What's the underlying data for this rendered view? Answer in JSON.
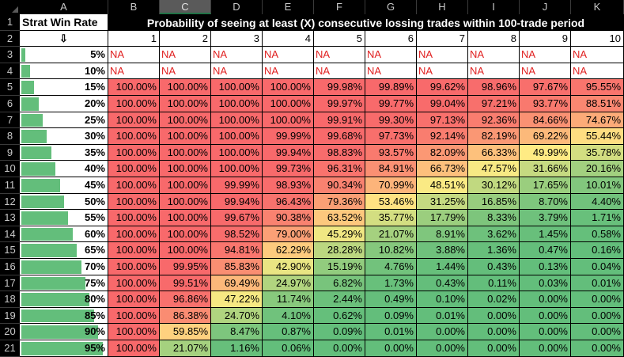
{
  "sheet": {
    "columns": [
      "A",
      "B",
      "C",
      "D",
      "E",
      "F",
      "G",
      "H",
      "I",
      "J",
      "K"
    ],
    "selected_column": "C",
    "rows": [
      "1",
      "2",
      "3",
      "4",
      "5",
      "6",
      "7",
      "8",
      "9",
      "10",
      "11",
      "12",
      "13",
      "14",
      "15",
      "16",
      "17",
      "18",
      "19",
      "20",
      "21"
    ]
  },
  "header": {
    "a1": "Strat Win Rate",
    "title": "Probability of seeing at least (X) consecutive lossing trades within 100-trade period",
    "a2": "⇩",
    "streaks": [
      "1",
      "2",
      "3",
      "4",
      "5",
      "6",
      "7",
      "8",
      "9",
      "10"
    ]
  },
  "table": [
    {
      "rate": "5%",
      "fill": 0.05,
      "values": [
        "NA",
        "NA",
        "NA",
        "NA",
        "NA",
        "NA",
        "NA",
        "NA",
        "NA",
        "NA"
      ]
    },
    {
      "rate": "10%",
      "fill": 0.1,
      "values": [
        "NA",
        "NA",
        "NA",
        "NA",
        "NA",
        "NA",
        "NA",
        "NA",
        "NA",
        "NA"
      ]
    },
    {
      "rate": "15%",
      "fill": 0.15,
      "values": [
        "100.00%",
        "100.00%",
        "100.00%",
        "100.00%",
        "99.98%",
        "99.89%",
        "99.62%",
        "98.96%",
        "97.67%",
        "95.55%"
      ]
    },
    {
      "rate": "20%",
      "fill": 0.2,
      "values": [
        "100.00%",
        "100.00%",
        "100.00%",
        "100.00%",
        "99.97%",
        "99.77%",
        "99.04%",
        "97.21%",
        "93.77%",
        "88.51%"
      ]
    },
    {
      "rate": "25%",
      "fill": 0.25,
      "values": [
        "100.00%",
        "100.00%",
        "100.00%",
        "100.00%",
        "99.91%",
        "99.30%",
        "97.13%",
        "92.36%",
        "84.66%",
        "74.67%"
      ]
    },
    {
      "rate": "30%",
      "fill": 0.3,
      "values": [
        "100.00%",
        "100.00%",
        "100.00%",
        "99.99%",
        "99.68%",
        "97.73%",
        "92.14%",
        "82.19%",
        "69.22%",
        "55.44%"
      ]
    },
    {
      "rate": "35%",
      "fill": 0.35,
      "values": [
        "100.00%",
        "100.00%",
        "100.00%",
        "99.94%",
        "98.83%",
        "93.57%",
        "82.09%",
        "66.33%",
        "49.99%",
        "35.78%"
      ]
    },
    {
      "rate": "40%",
      "fill": 0.4,
      "values": [
        "100.00%",
        "100.00%",
        "100.00%",
        "99.73%",
        "96.31%",
        "84.91%",
        "66.73%",
        "47.57%",
        "31.66%",
        "20.16%"
      ]
    },
    {
      "rate": "45%",
      "fill": 0.45,
      "values": [
        "100.00%",
        "100.00%",
        "99.99%",
        "98.93%",
        "90.34%",
        "70.99%",
        "48.51%",
        "30.12%",
        "17.65%",
        "10.01%"
      ]
    },
    {
      "rate": "50%",
      "fill": 0.5,
      "values": [
        "100.00%",
        "100.00%",
        "99.94%",
        "96.43%",
        "79.36%",
        "53.46%",
        "31.25%",
        "16.85%",
        "8.70%",
        "4.40%"
      ]
    },
    {
      "rate": "55%",
      "fill": 0.55,
      "values": [
        "100.00%",
        "100.00%",
        "99.67%",
        "90.38%",
        "63.52%",
        "35.77%",
        "17.79%",
        "8.33%",
        "3.79%",
        "1.71%"
      ]
    },
    {
      "rate": "60%",
      "fill": 0.6,
      "values": [
        "100.00%",
        "100.00%",
        "98.52%",
        "79.00%",
        "45.29%",
        "21.07%",
        "8.91%",
        "3.62%",
        "1.45%",
        "0.58%"
      ]
    },
    {
      "rate": "65%",
      "fill": 0.65,
      "values": [
        "100.00%",
        "100.00%",
        "94.81%",
        "62.29%",
        "28.28%",
        "10.82%",
        "3.88%",
        "1.36%",
        "0.47%",
        "0.16%"
      ]
    },
    {
      "rate": "70%",
      "fill": 0.7,
      "values": [
        "100.00%",
        "99.95%",
        "85.83%",
        "42.90%",
        "15.19%",
        "4.76%",
        "1.44%",
        "0.43%",
        "0.13%",
        "0.04%"
      ]
    },
    {
      "rate": "75%",
      "fill": 0.75,
      "values": [
        "100.00%",
        "99.51%",
        "69.49%",
        "24.97%",
        "6.82%",
        "1.73%",
        "0.43%",
        "0.11%",
        "0.03%",
        "0.01%"
      ]
    },
    {
      "rate": "80%",
      "fill": 0.8,
      "values": [
        "100.00%",
        "96.86%",
        "47.22%",
        "11.74%",
        "2.44%",
        "0.49%",
        "0.10%",
        "0.02%",
        "0.00%",
        "0.00%"
      ]
    },
    {
      "rate": "85%",
      "fill": 0.85,
      "values": [
        "100.00%",
        "86.38%",
        "24.70%",
        "4.10%",
        "0.62%",
        "0.09%",
        "0.01%",
        "0.00%",
        "0.00%",
        "0.00%"
      ]
    },
    {
      "rate": "90%",
      "fill": 0.9,
      "values": [
        "100.00%",
        "59.85%",
        "8.47%",
        "0.87%",
        "0.09%",
        "0.01%",
        "0.00%",
        "0.00%",
        "0.00%",
        "0.00%"
      ]
    },
    {
      "rate": "95%",
      "fill": 0.95,
      "values": [
        "100.00%",
        "21.07%",
        "1.16%",
        "0.06%",
        "0.00%",
        "0.00%",
        "0.00%",
        "0.00%",
        "0.00%",
        "0.00%"
      ]
    }
  ],
  "colors": {
    "high": "#f8696b",
    "mid": "#ffeb84",
    "low": "#63be7b",
    "na_text": "#e02020",
    "databar": "#63be7b"
  }
}
